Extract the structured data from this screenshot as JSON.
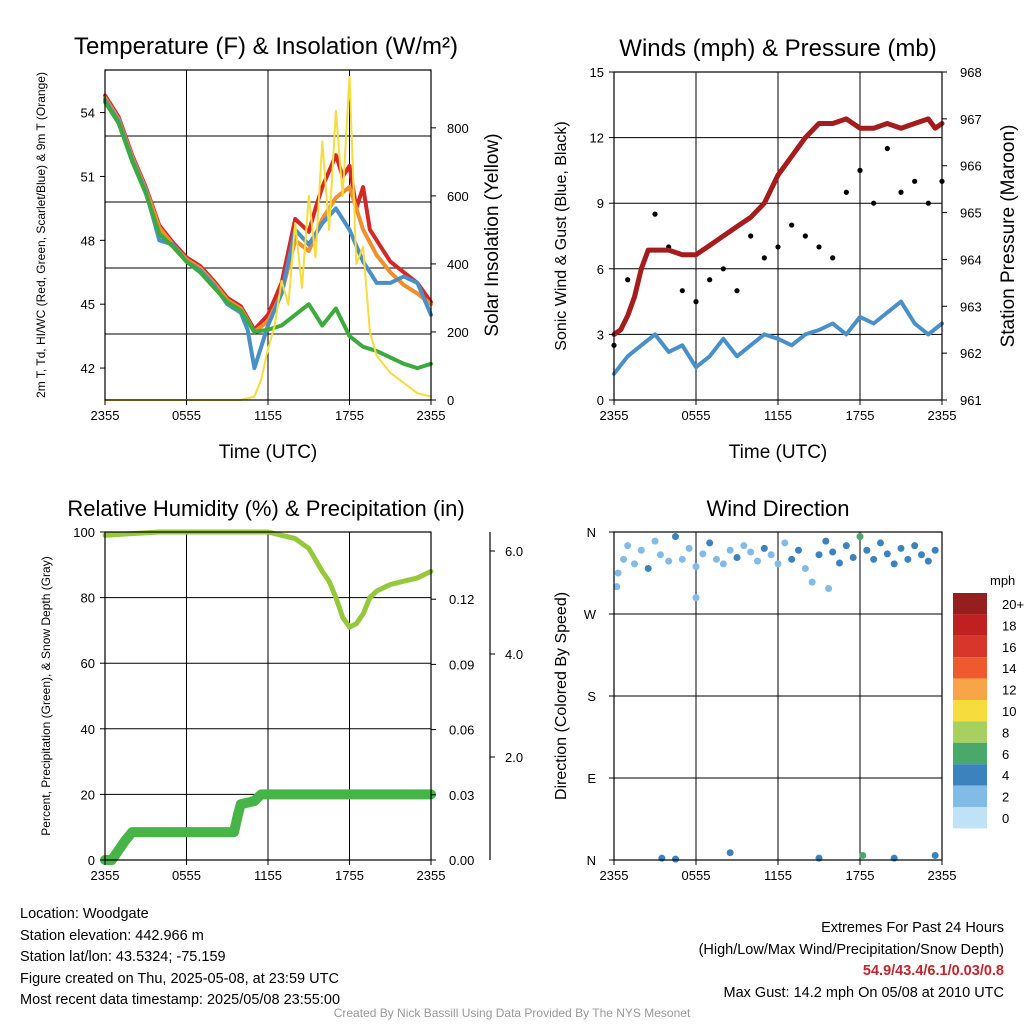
{
  "x_ticks": [
    "2355",
    "0555",
    "1155",
    "1755",
    "2355"
  ],
  "footer": {
    "location": "Location: Woodgate",
    "elevation": "Station elevation: 442.966 m",
    "latlon": "Station lat/lon: 43.5324; -75.159",
    "created": "Figure created on Thu, 2025-05-08, at 23:59 UTC",
    "recent": "Most recent data timestamp: 2025/05/08 23:55:00",
    "extremes_title": "Extremes For Past 24 Hours",
    "extremes_sub": "(High/Low/Max Wind/Precipitation/Snow Depth)",
    "extremes_values": "54.9/43.4/6.1/0.03/0.8",
    "max_gust": "Max Gust: 14.2 mph On 05/08 at 2010 UTC",
    "credit": "Created By Nick Bassill Using Data Provided By The NYS Mesonet"
  },
  "chart_data": [
    {
      "type": "line",
      "title": "Temperature (F) & Insolation (W/m²)",
      "xlabel": "Time (UTC)",
      "ylabel": "2m T, Td, HI/WC (Red, Green, Scarlet/Blue) & 9m T (Orange)",
      "ylabel_right": "Solar Insolation (Yellow)",
      "x_ticks": [
        "2355",
        "0555",
        "1155",
        "1755",
        "2355"
      ],
      "x_range_hours": [
        0,
        24
      ],
      "ylim": [
        40.5,
        56.0
      ],
      "yticks": [
        42,
        45,
        48,
        51,
        54
      ],
      "ylim_right": [
        0,
        970
      ],
      "yticks_right": [
        0,
        200,
        400,
        600,
        800
      ],
      "series": [
        {
          "name": "2m T",
          "color": "#d62728",
          "x": [
            0,
            1,
            2,
            3,
            4,
            4.5,
            5,
            6,
            7,
            8,
            9,
            10,
            11,
            12,
            13,
            13.5,
            14,
            15,
            15.5,
            16,
            17,
            17.5,
            18,
            18.5,
            19,
            19.5,
            20,
            21,
            22,
            23,
            24
          ],
          "y": [
            54.8,
            53.8,
            52.0,
            50.5,
            48.7,
            48.3,
            47.9,
            47.2,
            46.8,
            46.1,
            45.3,
            44.9,
            43.8,
            44.5,
            46.0,
            47.5,
            49.0,
            48.4,
            49.5,
            50.5,
            52.0,
            51.0,
            51.5,
            49.5,
            50.5,
            48.5,
            48.0,
            47.0,
            46.5,
            46.0,
            45.1
          ]
        },
        {
          "name": "9m T",
          "color": "#f28e2b",
          "x": [
            0,
            1,
            2,
            3,
            4,
            4.5,
            5,
            6,
            7,
            8,
            9,
            10,
            11,
            12,
            13,
            14,
            15,
            16,
            17,
            18,
            19,
            20,
            21,
            22,
            23,
            24
          ],
          "y": [
            54.7,
            53.7,
            51.9,
            50.4,
            48.6,
            48.2,
            47.8,
            47.1,
            46.7,
            46.0,
            45.2,
            44.8,
            43.7,
            44.2,
            45.5,
            48.0,
            47.5,
            49.0,
            50.0,
            50.5,
            48.5,
            47.3,
            46.5,
            45.9,
            45.5,
            45.0
          ]
        },
        {
          "name": "HI/WC",
          "color": "#4a90c8",
          "x": [
            0,
            1,
            2,
            3,
            3.7,
            4,
            5,
            6,
            7,
            8,
            9,
            10,
            10.5,
            11,
            12,
            13,
            14,
            15,
            16,
            17,
            18,
            19,
            20,
            21,
            22,
            23,
            24
          ],
          "y": [
            54.6,
            53.6,
            51.8,
            50.3,
            48.7,
            48.0,
            47.8,
            47.0,
            46.6,
            45.9,
            45.0,
            44.6,
            43.8,
            42.0,
            44.0,
            45.5,
            48.5,
            47.8,
            48.8,
            49.5,
            48.5,
            47.0,
            46.0,
            46.0,
            46.3,
            46.0,
            44.5
          ]
        },
        {
          "name": "2m Td",
          "color": "#3caa3c",
          "x": [
            0,
            1,
            2,
            3,
            4,
            5,
            6,
            7,
            8,
            9,
            10,
            11,
            12,
            13,
            14,
            15,
            16,
            17,
            18,
            19,
            20,
            21,
            22,
            23,
            24
          ],
          "y": [
            54.5,
            53.5,
            51.7,
            50.2,
            48.3,
            47.7,
            47.0,
            46.5,
            45.8,
            45.1,
            44.7,
            43.7,
            43.8,
            44.0,
            44.5,
            45.0,
            44.0,
            44.8,
            43.5,
            43.0,
            42.8,
            42.5,
            42.2,
            42.0,
            42.2
          ]
        },
        {
          "name": "Solar",
          "color": "#f6dc3c",
          "axis": "right",
          "x": [
            0,
            10,
            11,
            11.5,
            12,
            12.5,
            13,
            13.5,
            14,
            14.5,
            15,
            15.5,
            16,
            16.5,
            17,
            17.5,
            18,
            18.5,
            19,
            19.5,
            20,
            21,
            22,
            23,
            24
          ],
          "y": [
            0,
            0,
            10,
            60,
            150,
            220,
            350,
            280,
            520,
            330,
            600,
            420,
            760,
            500,
            850,
            600,
            950,
            400,
            450,
            200,
            130,
            80,
            50,
            20,
            10
          ]
        }
      ]
    },
    {
      "type": "line",
      "title": "Winds (mph) & Pressure (mb)",
      "xlabel": "Time (UTC)",
      "ylabel": "Sonic Wind & Gust (Blue, Black)",
      "ylabel_right": "Station Pressure (Maroon)",
      "x_ticks": [
        "2355",
        "0555",
        "1155",
        "1755",
        "2355"
      ],
      "x_range_hours": [
        0,
        24
      ],
      "ylim": [
        0,
        15
      ],
      "yticks": [
        0,
        3,
        6,
        9,
        12,
        15
      ],
      "ylim_right": [
        961,
        968
      ],
      "yticks_right": [
        961,
        962,
        963,
        964,
        965,
        966,
        967,
        968
      ],
      "series": [
        {
          "name": "Wind",
          "color": "#4a90c8",
          "x": [
            0,
            1,
            2,
            3,
            4,
            5,
            6,
            7,
            8,
            9,
            10,
            11,
            12,
            13,
            14,
            15,
            16,
            17,
            18,
            19,
            20,
            21,
            22,
            23,
            24
          ],
          "y": [
            1.2,
            2.0,
            2.5,
            3.0,
            2.2,
            2.5,
            1.5,
            2.0,
            2.8,
            2.0,
            2.5,
            3.0,
            2.8,
            2.5,
            3.0,
            3.2,
            3.5,
            3.0,
            3.8,
            3.5,
            4.0,
            4.5,
            3.5,
            3.0,
            3.5
          ]
        },
        {
          "name": "Gust",
          "color": "#000000",
          "x": [
            0,
            1,
            2,
            3,
            4,
            5,
            6,
            7,
            8,
            9,
            10,
            11,
            12,
            13,
            14,
            15,
            16,
            17,
            18,
            19,
            20,
            21,
            22,
            23,
            24
          ],
          "y": [
            2.5,
            5.5,
            6.0,
            8.5,
            7.0,
            5.0,
            4.5,
            5.5,
            6.0,
            5.0,
            7.5,
            6.5,
            7.0,
            8.0,
            7.5,
            7.0,
            6.5,
            9.5,
            10.5,
            9.0,
            11.5,
            9.5,
            10.0,
            9.0,
            10.0
          ]
        },
        {
          "name": "Pressure",
          "color": "#a51c1c",
          "axis": "right",
          "x": [
            0,
            0.5,
            1,
            1.5,
            2,
            2.5,
            3,
            4,
            5,
            6,
            7,
            8,
            9,
            10,
            11,
            11.5,
            12,
            13,
            14,
            15,
            16,
            17,
            18,
            19,
            20,
            21,
            22,
            23,
            23.5,
            24
          ],
          "y": [
            962.4,
            962.5,
            962.8,
            963.2,
            963.8,
            964.2,
            964.2,
            964.2,
            964.1,
            964.1,
            964.3,
            964.5,
            964.7,
            964.9,
            965.2,
            965.5,
            965.8,
            966.2,
            966.6,
            966.9,
            966.9,
            967.0,
            966.8,
            966.8,
            966.9,
            966.8,
            966.9,
            967.0,
            966.8,
            966.9
          ]
        }
      ]
    },
    {
      "type": "line",
      "title": "Relative Humidity (%) & Precipitation (in)",
      "ylabel": "Percent, Precipitation (Green), & Snow Depth (Gray)",
      "x_ticks": [
        "2355",
        "0555",
        "1155",
        "1755",
        "2355"
      ],
      "x_range_hours": [
        0,
        24
      ],
      "ylim": [
        0,
        100
      ],
      "yticks": [
        0,
        20,
        40,
        60,
        80,
        100
      ],
      "yticks_right1": [
        "0.00",
        "0.03",
        "0.06",
        "0.09",
        "0.12"
      ],
      "yticks_right2": [
        "2.0",
        "4.0",
        "6.0"
      ],
      "series": [
        {
          "name": "RH",
          "color": "#96c83c",
          "x": [
            0,
            2,
            4,
            6,
            8,
            10,
            12,
            13,
            14,
            15,
            16,
            16.5,
            17,
            17.5,
            18,
            18.5,
            19,
            19.5,
            20,
            21,
            22,
            23,
            24
          ],
          "y": [
            99,
            99.5,
            100,
            100,
            100,
            100,
            100,
            99,
            98,
            95,
            88,
            85,
            80,
            74,
            71,
            72,
            75,
            80,
            82,
            84,
            85,
            86,
            88
          ]
        },
        {
          "name": "Precipitation",
          "color": "#46b446",
          "x": [
            0,
            0.5,
            1,
            1.5,
            2,
            9.5,
            9.8,
            10,
            11,
            11.5,
            24
          ],
          "y": [
            0,
            0,
            3,
            6,
            8.5,
            8.5,
            14,
            17,
            18,
            20,
            20
          ]
        }
      ]
    },
    {
      "type": "scatter",
      "title": "Wind Direction",
      "ylabel": "Direction (Colored By Speed)",
      "x_ticks": [
        "2355",
        "0555",
        "1155",
        "1755",
        "2355"
      ],
      "x_range_hours": [
        0,
        24
      ],
      "y_ticks": [
        "N",
        "E",
        "S",
        "W",
        "N"
      ],
      "ylim": [
        0,
        360
      ],
      "legend_title": "mph",
      "legend_labels": [
        "20+",
        "18",
        "16",
        "14",
        "12",
        "10",
        "8",
        "6",
        "4",
        "2",
        "0"
      ],
      "legend_colors": [
        "#961e1e",
        "#c0201f",
        "#d8362a",
        "#ee5a2e",
        "#f8a548",
        "#f6dc3c",
        "#a8d060",
        "#4aa86a",
        "#3c82bc",
        "#82bce6",
        "#c0e2f6"
      ],
      "points": [
        {
          "x": 0.3,
          "y": 315,
          "s": 1
        },
        {
          "x": 0.7,
          "y": 330,
          "s": 2
        },
        {
          "x": 1.0,
          "y": 345,
          "s": 1
        },
        {
          "x": 1.5,
          "y": 325,
          "s": 2
        },
        {
          "x": 2.0,
          "y": 340,
          "s": 1
        },
        {
          "x": 2.5,
          "y": 320,
          "s": 3
        },
        {
          "x": 3.0,
          "y": 350,
          "s": 2
        },
        {
          "x": 3.4,
          "y": 335,
          "s": 1
        },
        {
          "x": 4.0,
          "y": 328,
          "s": 2
        },
        {
          "x": 4.5,
          "y": 355,
          "s": 3
        },
        {
          "x": 5.0,
          "y": 330,
          "s": 1
        },
        {
          "x": 5.5,
          "y": 342,
          "s": 2
        },
        {
          "x": 6.0,
          "y": 322,
          "s": 1
        },
        {
          "x": 6.5,
          "y": 336,
          "s": 2
        },
        {
          "x": 7.0,
          "y": 348,
          "s": 3
        },
        {
          "x": 7.5,
          "y": 330,
          "s": 2
        },
        {
          "x": 8.0,
          "y": 325,
          "s": 1
        },
        {
          "x": 8.5,
          "y": 340,
          "s": 2
        },
        {
          "x": 9.0,
          "y": 332,
          "s": 3
        },
        {
          "x": 9.5,
          "y": 345,
          "s": 2
        },
        {
          "x": 10.0,
          "y": 338,
          "s": 1
        },
        {
          "x": 10.5,
          "y": 328,
          "s": 2
        },
        {
          "x": 11.0,
          "y": 342,
          "s": 3
        },
        {
          "x": 11.5,
          "y": 335,
          "s": 2
        },
        {
          "x": 12.0,
          "y": 325,
          "s": 1
        },
        {
          "x": 12.5,
          "y": 348,
          "s": 2
        },
        {
          "x": 13.0,
          "y": 330,
          "s": 3
        },
        {
          "x": 13.5,
          "y": 340,
          "s": 4
        },
        {
          "x": 14.0,
          "y": 320,
          "s": 2
        },
        {
          "x": 14.5,
          "y": 305,
          "s": 2
        },
        {
          "x": 15.0,
          "y": 335,
          "s": 3
        },
        {
          "x": 15.5,
          "y": 350,
          "s": 4
        },
        {
          "x": 16.0,
          "y": 338,
          "s": 3
        },
        {
          "x": 16.5,
          "y": 326,
          "s": 4
        },
        {
          "x": 17.0,
          "y": 345,
          "s": 4
        },
        {
          "x": 17.5,
          "y": 332,
          "s": 4
        },
        {
          "x": 18.0,
          "y": 355,
          "s": 6
        },
        {
          "x": 18.5,
          "y": 340,
          "s": 4
        },
        {
          "x": 19.0,
          "y": 330,
          "s": 3
        },
        {
          "x": 19.5,
          "y": 348,
          "s": 4
        },
        {
          "x": 20.0,
          "y": 336,
          "s": 4
        },
        {
          "x": 20.5,
          "y": 325,
          "s": 3
        },
        {
          "x": 21.0,
          "y": 342,
          "s": 4
        },
        {
          "x": 21.5,
          "y": 330,
          "s": 3
        },
        {
          "x": 22.0,
          "y": 345,
          "s": 4
        },
        {
          "x": 22.5,
          "y": 335,
          "s": 3
        },
        {
          "x": 23.0,
          "y": 328,
          "s": 4
        },
        {
          "x": 23.5,
          "y": 340,
          "s": 3
        },
        {
          "x": 0.2,
          "y": 300,
          "s": 1
        },
        {
          "x": 6.0,
          "y": 288,
          "s": 1
        },
        {
          "x": 15.7,
          "y": 298,
          "s": 2
        },
        {
          "x": 3.5,
          "y": 2,
          "s": 3
        },
        {
          "x": 4.5,
          "y": 1,
          "s": 3
        },
        {
          "x": 8.5,
          "y": 8,
          "s": 4
        },
        {
          "x": 15.0,
          "y": 2,
          "s": 3
        },
        {
          "x": 18.2,
          "y": 5,
          "s": 6
        },
        {
          "x": 20.5,
          "y": 2,
          "s": 4
        },
        {
          "x": 23.5,
          "y": 5,
          "s": 4
        }
      ]
    }
  ]
}
